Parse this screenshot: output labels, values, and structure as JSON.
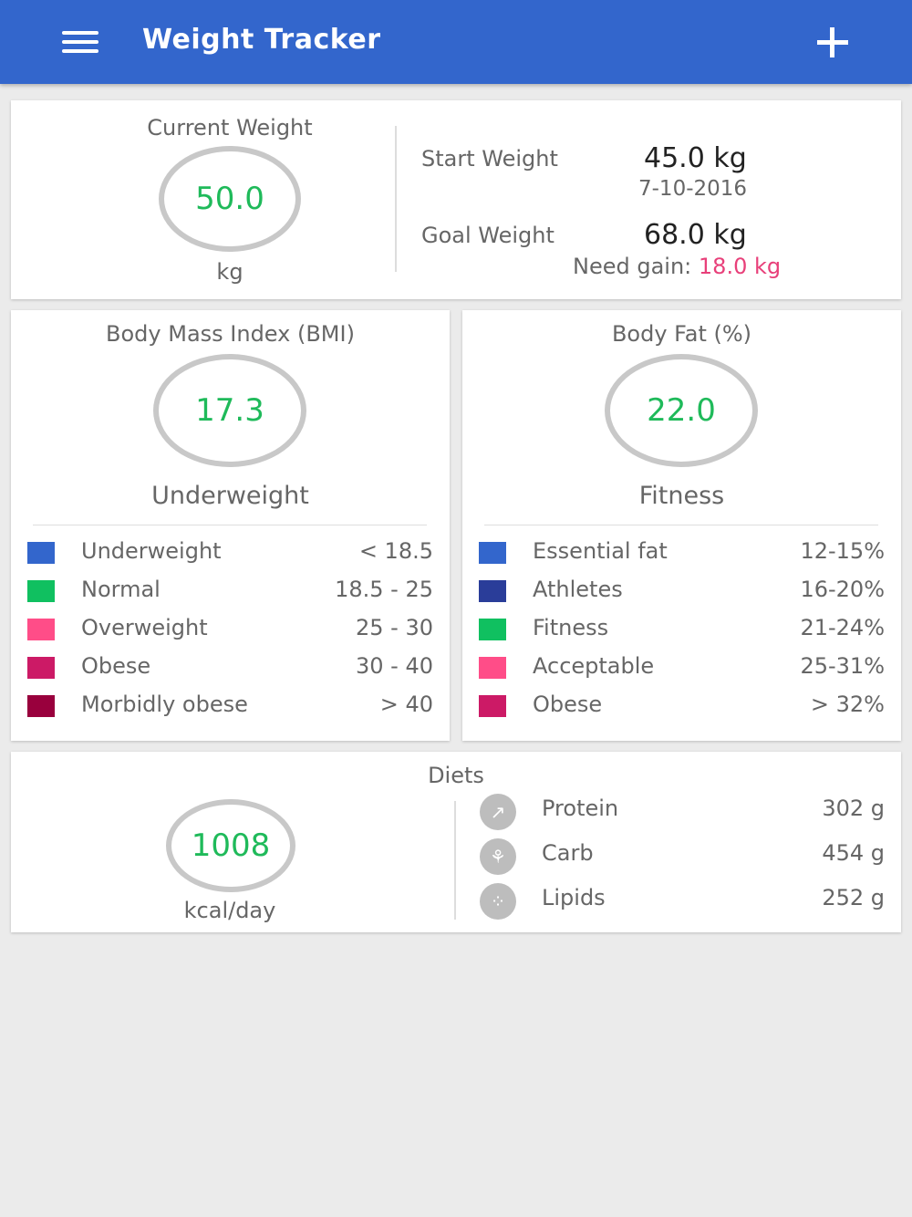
{
  "appbar": {
    "title": "Weight Tracker",
    "menu_icon": "menu-icon",
    "add_icon": "plus-icon"
  },
  "weight": {
    "current_label": "Current Weight",
    "current_value": "50.0",
    "current_unit": "kg",
    "start_label": "Start Weight",
    "start_value": "45.0 kg",
    "start_date": "7-10-2016",
    "goal_label": "Goal Weight",
    "goal_value": "68.0 kg",
    "need_label": "Need gain:",
    "need_value": "18.0 kg"
  },
  "bmi": {
    "title": "Body Mass Index (BMI)",
    "value": "17.3",
    "category": "Underweight",
    "legend": [
      {
        "name": "Underweight",
        "range": "< 18.5",
        "color": "#3366cc"
      },
      {
        "name": "Normal",
        "range": "18.5 - 25",
        "color": "#10c060"
      },
      {
        "name": "Overweight",
        "range": "25 - 30",
        "color": "#ff4d88"
      },
      {
        "name": "Obese",
        "range": "30 - 40",
        "color": "#cc1a66"
      },
      {
        "name": "Morbidly obese",
        "range": "> 40",
        "color": "#99003d"
      }
    ]
  },
  "bodyfat": {
    "title": "Body Fat (%)",
    "value": "22.0",
    "category": "Fitness",
    "legend": [
      {
        "name": "Essential fat",
        "range": "12-15%",
        "color": "#3366cc"
      },
      {
        "name": "Athletes",
        "range": "16-20%",
        "color": "#2a3d99"
      },
      {
        "name": "Fitness",
        "range": "21-24%",
        "color": "#10c060"
      },
      {
        "name": "Acceptable",
        "range": "25-31%",
        "color": "#ff4d88"
      },
      {
        "name": "Obese",
        "range": "> 32%",
        "color": "#cc1a66"
      }
    ]
  },
  "diets": {
    "title": "Diets",
    "kcal_value": "1008",
    "kcal_unit": "kcal/day",
    "items": [
      {
        "name": "Protein",
        "value": "302 g",
        "icon": "muscle-icon"
      },
      {
        "name": "Carb",
        "value": "454 g",
        "icon": "wheat-icon"
      },
      {
        "name": "Lipids",
        "value": "252 g",
        "icon": "molecule-icon"
      }
    ]
  },
  "colors": {
    "accent": "#3366cc",
    "value_green": "#1fba5a",
    "need_pink": "#e8407a"
  }
}
